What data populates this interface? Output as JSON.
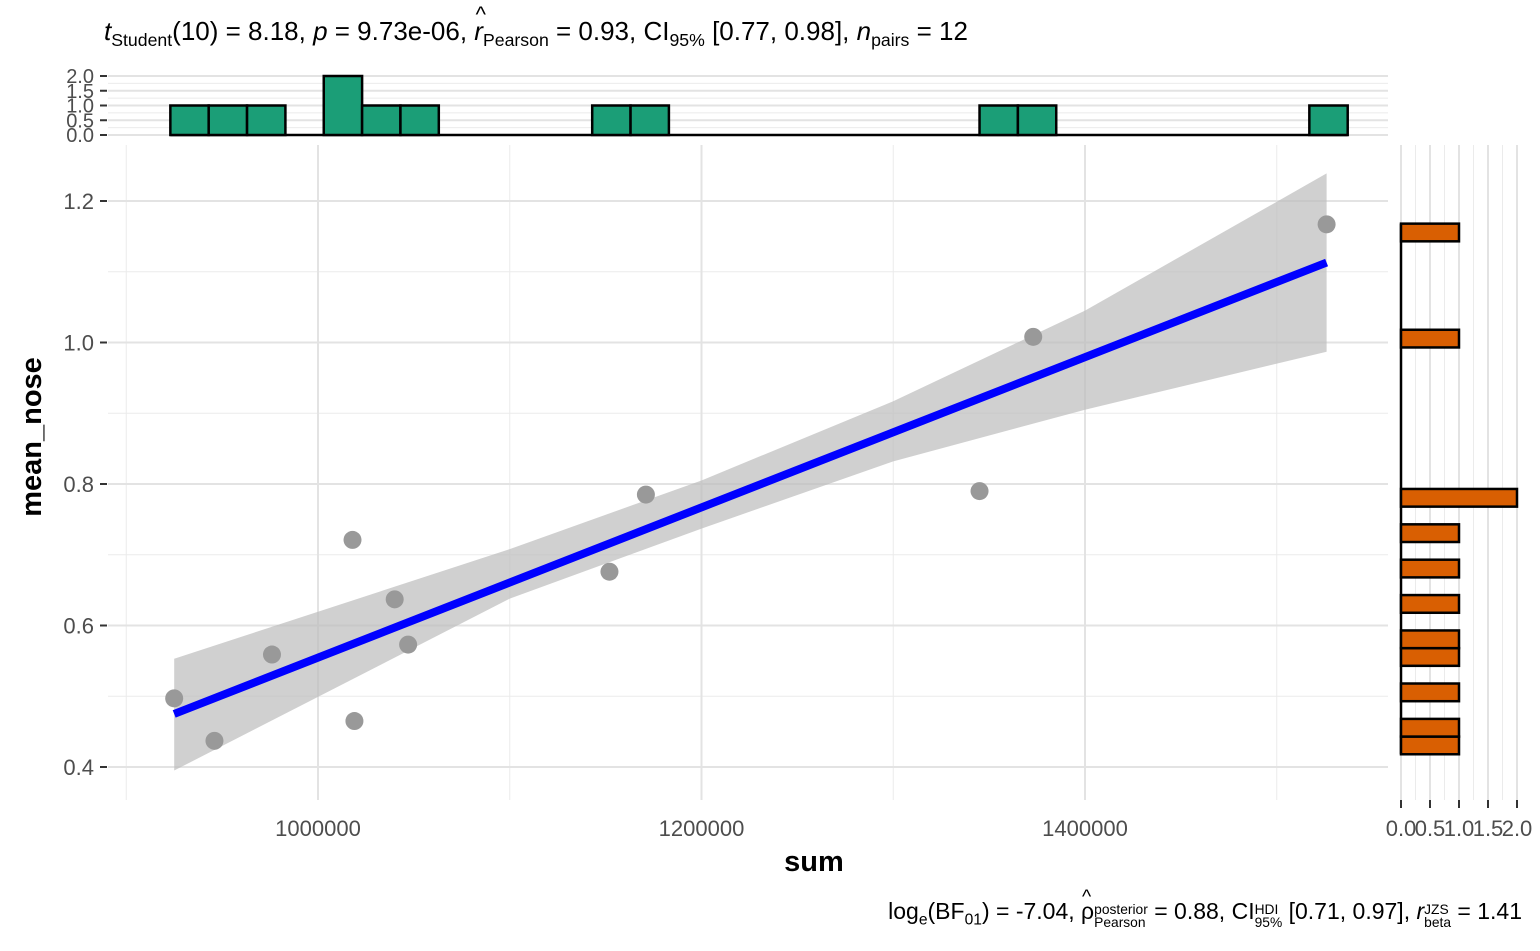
{
  "header": {
    "t_sym": "t",
    "t_sub": "Student",
    "t_df": "(10) = 8.18, ",
    "p_sym": "p",
    "p_val": " = 9.73e-06, ",
    "r_sym": "r",
    "r_sub": "Pearson",
    "r_val": " = 0.93, CI",
    "ci_sub": "95%",
    "ci_val": " [0.77, 0.98], ",
    "n_sym": "n",
    "n_sub": "pairs",
    "n_val": " = 12"
  },
  "footer": {
    "log_text": "log",
    "log_sub": "e",
    "bf_open": "(BF",
    "bf_sub": "01",
    "bf_val": ") = -7.04, ",
    "rho_sym": "ρ",
    "rho_sup": "posterior",
    "rho_sub": "Pearson",
    "rho_val": " = 0.88, CI",
    "hdi_sup": "HDI",
    "hdi_sub": "95%",
    "hdi_val": " [0.71, 0.97], ",
    "rb_sym": "r",
    "rb_sup": "JZS",
    "rb_sub": "beta",
    "rb_val": " = 1.41"
  },
  "chart_data": {
    "type": "scatter",
    "xlabel": "sum",
    "ylabel": "mean_nose",
    "xlim": [
      900000,
      1550000
    ],
    "ylim": [
      0.38,
      1.26
    ],
    "x_ticks": [
      1000000,
      1200000,
      1400000
    ],
    "y_ticks": [
      0.4,
      0.6,
      0.8,
      1.0,
      1.2
    ],
    "x_tick_labels": [
      "1000000",
      "1200000",
      "1400000"
    ],
    "y_tick_labels": [
      "0.4",
      "0.6",
      "0.8",
      "1.0",
      "1.2"
    ],
    "points": [
      {
        "x": 925000,
        "y": 0.497
      },
      {
        "x": 946000,
        "y": 0.437
      },
      {
        "x": 976000,
        "y": 0.559
      },
      {
        "x": 1018000,
        "y": 0.721
      },
      {
        "x": 1019000,
        "y": 0.465
      },
      {
        "x": 1040000,
        "y": 0.637
      },
      {
        "x": 1047000,
        "y": 0.573
      },
      {
        "x": 1152000,
        "y": 0.676
      },
      {
        "x": 1171000,
        "y": 0.785
      },
      {
        "x": 1345000,
        "y": 0.79
      },
      {
        "x": 1373000,
        "y": 1.008
      },
      {
        "x": 1526000,
        "y": 1.167
      }
    ],
    "fit_line": {
      "x": [
        925000,
        1526000
      ],
      "y": [
        0.475,
        1.113
      ],
      "color": "#0000FF"
    },
    "confidence_band": [
      {
        "x": 925000,
        "lo": 0.395,
        "hi": 0.553
      },
      {
        "x": 1100000,
        "lo": 0.638,
        "hi": 0.708
      },
      {
        "x": 1200000,
        "lo": 0.737,
        "hi": 0.805
      },
      {
        "x": 1300000,
        "lo": 0.832,
        "hi": 0.917
      },
      {
        "x": 1400000,
        "lo": 0.905,
        "hi": 1.045
      },
      {
        "x": 1526000,
        "lo": 0.987,
        "hi": 1.239
      }
    ],
    "point_color": "#999999",
    "band_color": "#BEBEBE",
    "x_histogram": {
      "color": "#1B9E77",
      "yticks": [
        "0.0",
        "0.5",
        "1.0",
        "1.5",
        "2.0"
      ],
      "bins": [
        {
          "x0": 923000,
          "x1": 943000,
          "count": 1
        },
        {
          "x0": 943000,
          "x1": 963000,
          "count": 1
        },
        {
          "x0": 963000,
          "x1": 983000,
          "count": 1
        },
        {
          "x0": 1003000,
          "x1": 1023000,
          "count": 2
        },
        {
          "x0": 1023000,
          "x1": 1043000,
          "count": 1
        },
        {
          "x0": 1043000,
          "x1": 1063000,
          "count": 1
        },
        {
          "x0": 1143000,
          "x1": 1163000,
          "count": 1
        },
        {
          "x0": 1163000,
          "x1": 1183000,
          "count": 1
        },
        {
          "x0": 1345000,
          "x1": 1365000,
          "count": 1
        },
        {
          "x0": 1365000,
          "x1": 1385000,
          "count": 1
        },
        {
          "x0": 1517000,
          "x1": 1537000,
          "count": 1
        }
      ]
    },
    "y_histogram": {
      "color": "#D95F02",
      "xticks": [
        "0.0",
        "0.5",
        "1.0",
        "1.5",
        "2.0"
      ],
      "bins": [
        {
          "y0": 0.418,
          "y1": 0.443,
          "count": 1
        },
        {
          "y0": 0.443,
          "y1": 0.468,
          "count": 1
        },
        {
          "y0": 0.493,
          "y1": 0.518,
          "count": 1
        },
        {
          "y0": 0.543,
          "y1": 0.568,
          "count": 1
        },
        {
          "y0": 0.568,
          "y1": 0.593,
          "count": 1
        },
        {
          "y0": 0.618,
          "y1": 0.643,
          "count": 1
        },
        {
          "y0": 0.668,
          "y1": 0.693,
          "count": 1
        },
        {
          "y0": 0.718,
          "y1": 0.743,
          "count": 1
        },
        {
          "y0": 0.768,
          "y1": 0.793,
          "count": 2
        },
        {
          "y0": 0.993,
          "y1": 1.018,
          "count": 1
        },
        {
          "y0": 1.143,
          "y1": 1.168,
          "count": 1
        }
      ]
    }
  }
}
